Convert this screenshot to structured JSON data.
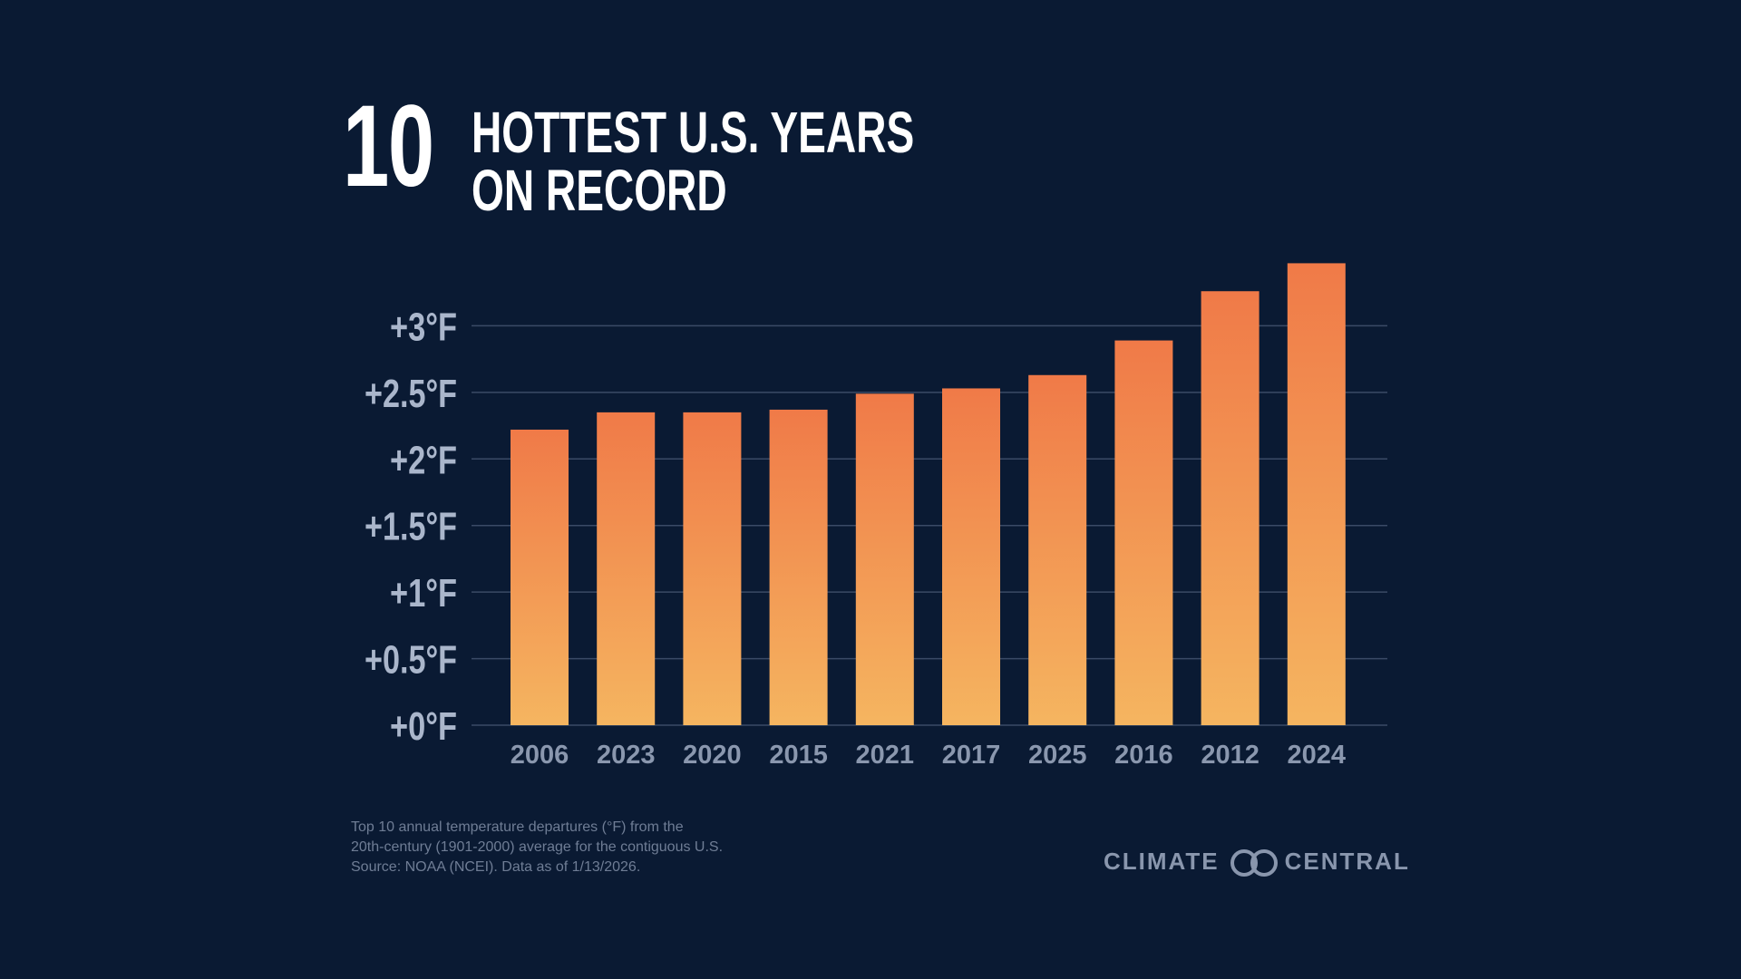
{
  "title": {
    "number": "10",
    "line1": "HOTTEST U.S. YEARS",
    "line2": "ON RECORD"
  },
  "chart_data": {
    "type": "bar",
    "title": "10 HOTTEST U.S. YEARS ON RECORD",
    "categories": [
      "2006",
      "2023",
      "2020",
      "2015",
      "2021",
      "2017",
      "2025",
      "2016",
      "2012",
      "2024"
    ],
    "values": [
      2.22,
      2.35,
      2.35,
      2.37,
      2.49,
      2.53,
      2.63,
      2.89,
      3.26,
      3.47
    ],
    "ylim": [
      0,
      3.5
    ],
    "yticks": [
      {
        "value": 0,
        "label": "+0°F"
      },
      {
        "value": 0.5,
        "label": "+0.5°F"
      },
      {
        "value": 1,
        "label": "+1°F"
      },
      {
        "value": 1.5,
        "label": "+1.5°F"
      },
      {
        "value": 2,
        "label": "+2°F"
      },
      {
        "value": 2.5,
        "label": "+2.5°F"
      },
      {
        "value": 3,
        "label": "+3°F"
      }
    ],
    "grid": true,
    "colors": {
      "bar_top": "#f07a48",
      "bar_bottom": "#f5b560",
      "grid": "#3a4a66",
      "background": "#0a1a33"
    }
  },
  "footnote": {
    "line1": "Top 10 annual temperature departures (°F) from the",
    "line2": "20th-century (1901-2000) average for the contiguous U.S.",
    "line3": "Source: NOAA (NCEI). Data as of 1/13/2026."
  },
  "logo": {
    "left_text": "CLIMATE",
    "right_text": "CENTRAL"
  }
}
